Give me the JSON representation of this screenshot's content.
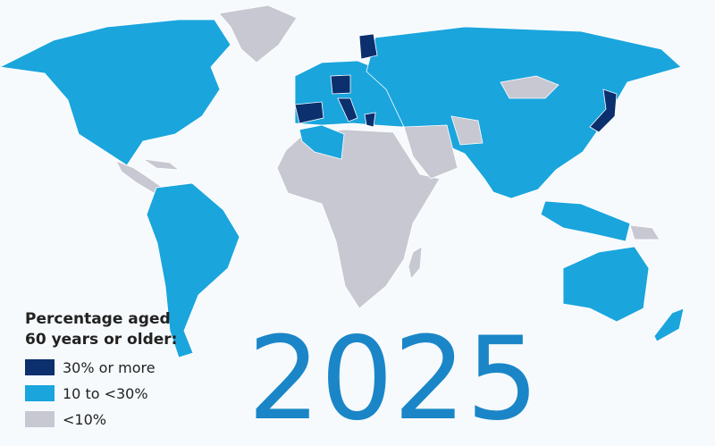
{
  "map": {
    "year": "2025",
    "legend": {
      "title_lines": [
        "Percentage aged",
        "60 years or older:"
      ],
      "items": [
        {
          "label": "30% or more",
          "color": "#0c2f6d"
        },
        {
          "label": "10 to <30%",
          "color": "#1aa5dd"
        },
        {
          "label": "<10%",
          "color": "#c8c8d3"
        }
      ]
    }
  }
}
